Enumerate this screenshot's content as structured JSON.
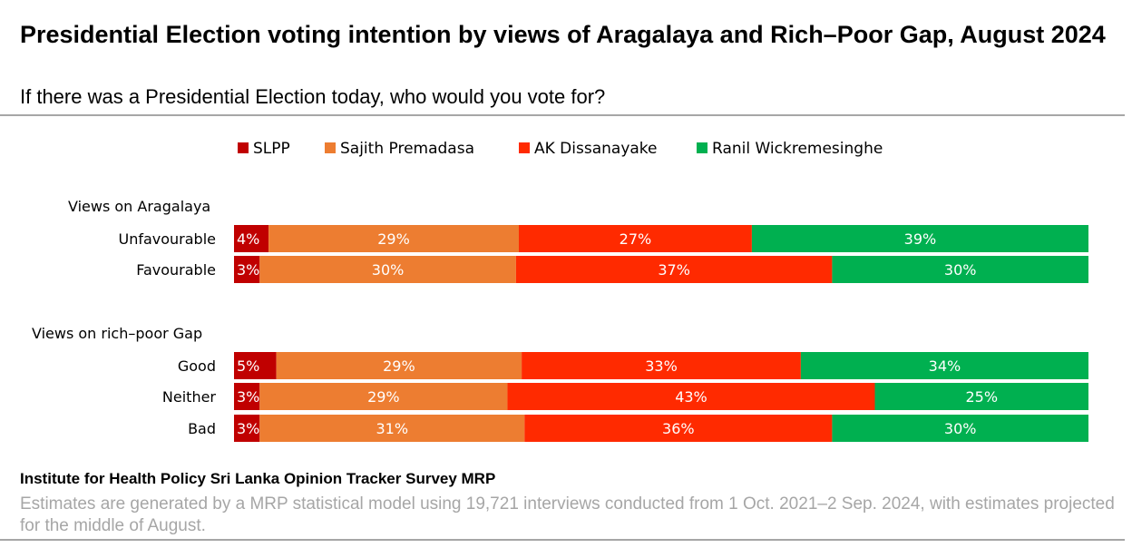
{
  "header": {
    "title": "Presidential Election voting intention by views of Aragalaya and Rich–Poor Gap, August 2024",
    "subtitle": "If there was a Presidential Election today, who would you vote for?"
  },
  "footer": {
    "source": "Institute for Health Policy Sri Lanka Opinion Tracker Survey MRP",
    "note": "Estimates are generated by a MRP statistical model using 19,721 interviews conducted from 1 Oct. 2021–2 Sep. 2024, with estimates projected for the middle of August."
  },
  "chart_data": {
    "type": "bar",
    "orientation": "horizontal",
    "stacked": true,
    "value_format": "percent",
    "legend_position": "top",
    "series": [
      {
        "name": "SLPP",
        "color": "#c00000"
      },
      {
        "name": "Sajith Premadasa",
        "color": "#ed7d31"
      },
      {
        "name": "AK Dissanayake",
        "color": "#ff2a00"
      },
      {
        "name": "Ranil Wickremesinghe",
        "color": "#00b050"
      }
    ],
    "groups": [
      {
        "label": "Views on Aragalaya",
        "rows": [
          {
            "label": "Unfavourable",
            "values": [
              4,
              29,
              27,
              39
            ]
          },
          {
            "label": "Favourable",
            "values": [
              3,
              30,
              37,
              30
            ]
          }
        ]
      },
      {
        "label": "Views on rich–poor Gap",
        "rows": [
          {
            "label": "Good",
            "values": [
              5,
              29,
              33,
              34
            ]
          },
          {
            "label": "Neither",
            "values": [
              3,
              29,
              43,
              25
            ]
          },
          {
            "label": "Bad",
            "values": [
              3,
              31,
              36,
              30
            ]
          }
        ]
      }
    ]
  }
}
